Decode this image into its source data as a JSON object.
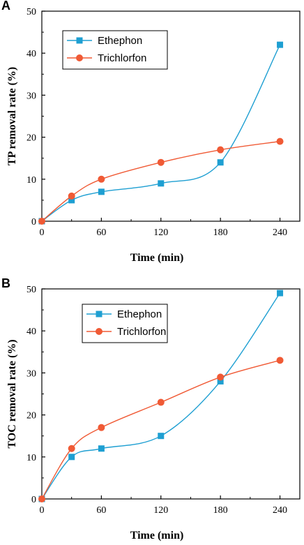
{
  "colors": {
    "ethephon": "#1e9fd2",
    "trichlorfon": "#f05a35"
  },
  "chart_data": [
    {
      "panel": "A",
      "type": "line",
      "xlabel": "Time (min)",
      "ylabel": "TP removal rate (%)",
      "xlim": [
        0,
        260
      ],
      "ylim": [
        0,
        50
      ],
      "xticks": [
        0,
        60,
        120,
        180,
        240
      ],
      "yticks": [
        0,
        10,
        20,
        30,
        40,
        50
      ],
      "legend_position": "top-left",
      "grid": false,
      "series": [
        {
          "name": "Ethephon",
          "marker": "square",
          "color": "#1e9fd2",
          "x": [
            0,
            30,
            60,
            120,
            180,
            240
          ],
          "y": [
            0,
            5,
            7,
            9,
            14,
            42
          ]
        },
        {
          "name": "Trichlorfon",
          "marker": "circle",
          "color": "#f05a35",
          "x": [
            0,
            30,
            60,
            120,
            180,
            240
          ],
          "y": [
            0,
            6,
            10,
            14,
            17,
            19
          ]
        }
      ]
    },
    {
      "panel": "B",
      "type": "line",
      "xlabel": "Time (min)",
      "ylabel": "TOC removal rate (%)",
      "xlim": [
        0,
        260
      ],
      "ylim": [
        0,
        50
      ],
      "xticks": [
        0,
        60,
        120,
        180,
        240
      ],
      "yticks": [
        0,
        10,
        20,
        30,
        40,
        50
      ],
      "legend_position": "top-left",
      "grid": false,
      "series": [
        {
          "name": "Ethephon",
          "marker": "square",
          "color": "#1e9fd2",
          "x": [
            0,
            30,
            60,
            120,
            180,
            240
          ],
          "y": [
            0,
            10,
            12,
            15,
            28,
            49
          ]
        },
        {
          "name": "Trichlorfon",
          "marker": "circle",
          "color": "#f05a35",
          "x": [
            0,
            30,
            60,
            120,
            180,
            240
          ],
          "y": [
            0,
            12,
            17,
            23,
            29,
            33
          ]
        }
      ]
    }
  ]
}
